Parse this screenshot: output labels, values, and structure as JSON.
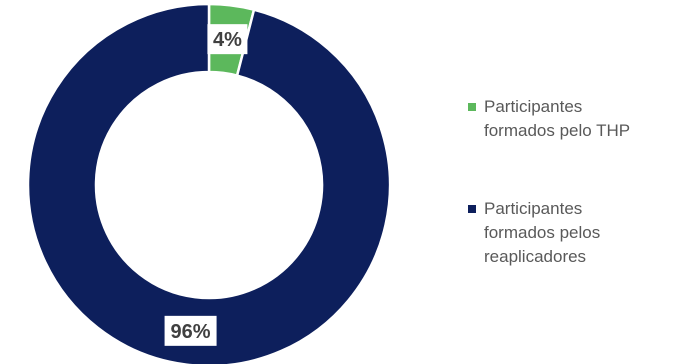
{
  "chart_data": {
    "type": "pie",
    "variant": "donut",
    "categories": [
      "Participantes\nformados pelo THP",
      "Participantes\nformados pelos\nreaplicadores"
    ],
    "values": [
      4,
      96
    ],
    "data_labels": [
      "4%",
      "96%"
    ],
    "colors": [
      "#5cb85c",
      "#0d1f5c"
    ],
    "legend_position": "right"
  }
}
